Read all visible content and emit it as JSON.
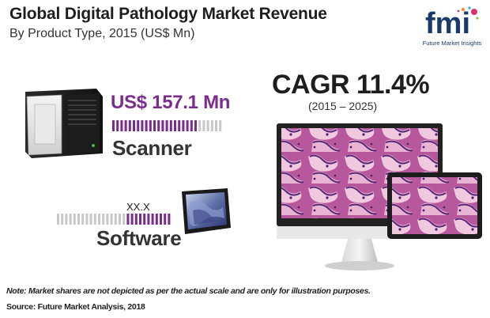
{
  "header": {
    "title": "Global Digital Pathology Market Revenue",
    "subtitle": "By Product Type, 2015 (US$ Mn)"
  },
  "logo": {
    "mark_text": "fmi",
    "caption": "Future Market Insights"
  },
  "cagr": {
    "label": "CAGR 11.4%",
    "period": "(2015 – 2025)"
  },
  "chart_data": {
    "type": "bar",
    "title": "Global Digital Pathology Market Revenue",
    "subtitle": "By Product Type, 2015 (US$ Mn)",
    "categories": [
      "Scanner",
      "Software"
    ],
    "value_labels": [
      "US$ 157.1 Mn",
      "XX.X"
    ],
    "values": [
      157.1,
      null
    ],
    "bar_fill_fraction": [
      0.78,
      0.41
    ],
    "cagr": 11.4,
    "cagr_period": "2015 – 2025"
  },
  "footer": {
    "note": "Note: Market shares are not depicted as per the actual scale and are only for illustration purposes.",
    "source": "Source: Future Market Analysis, 2018"
  },
  "colors": {
    "accent_purple": "#7b2d8e",
    "bar_inactive": "#c8c8c8",
    "logo_blue": "#1a3a6b",
    "logo_pink": "#d6336c"
  },
  "icons": {
    "scanner": "slide-scanner-device-icon",
    "software": "tablet-slide-image-icon",
    "monitors": "desktop-and-tablet-monitors-icon"
  }
}
